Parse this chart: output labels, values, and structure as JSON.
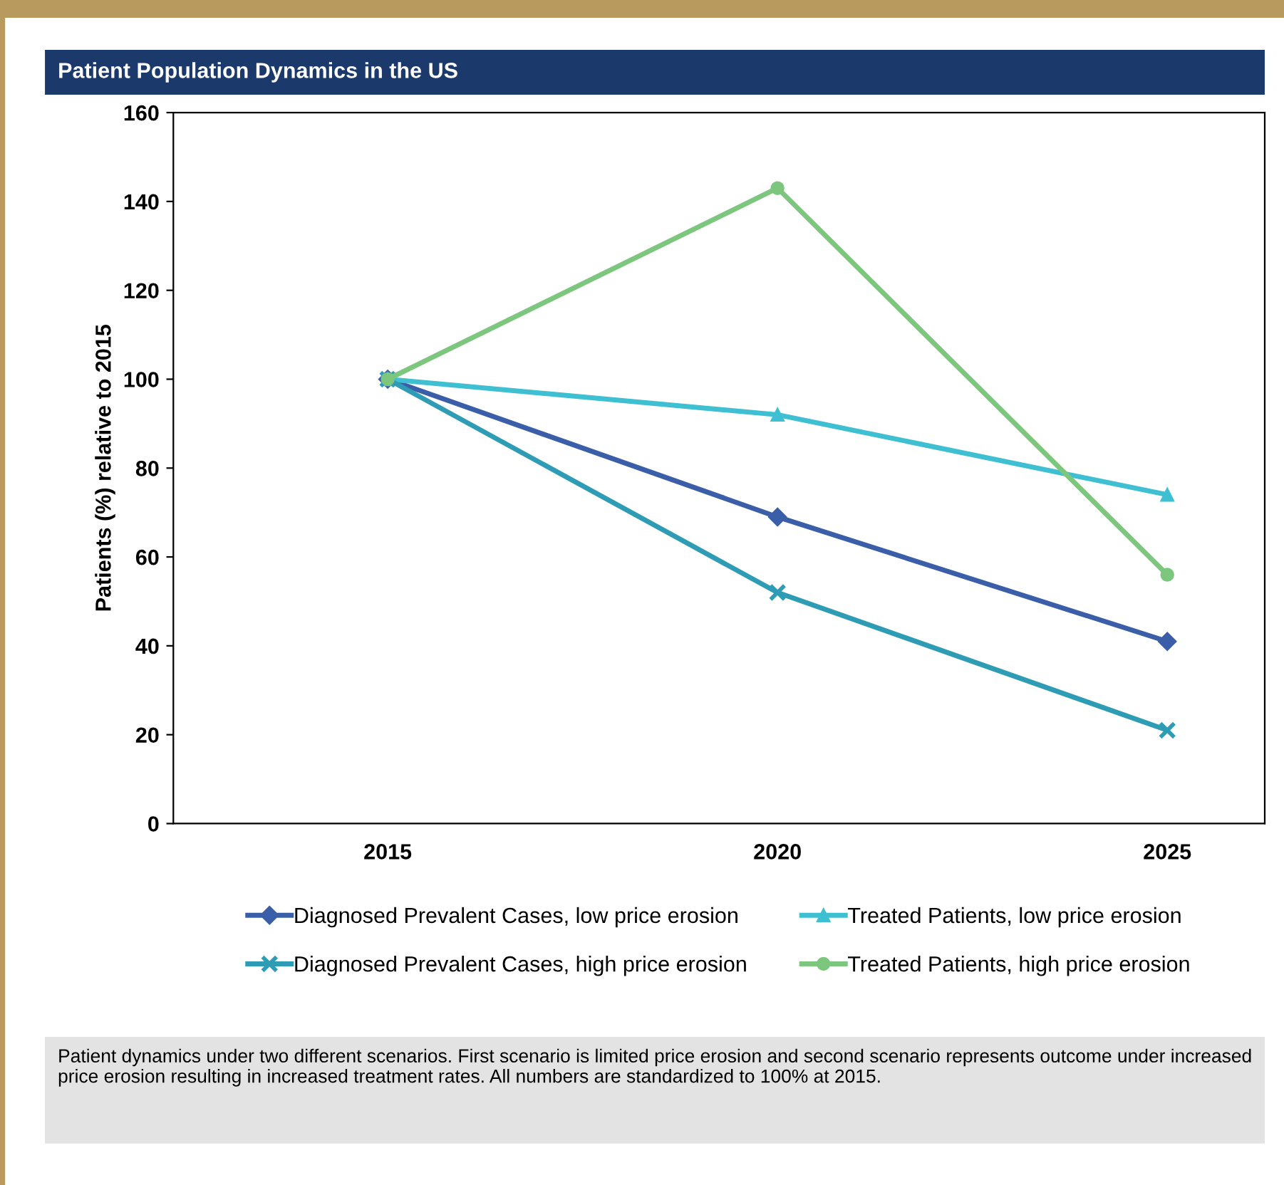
{
  "chart_data": {
    "type": "line",
    "title": "Patient Population Dynamics in the US",
    "ylabel": "Patients (%) relative to 2015",
    "categories": [
      "2015",
      "2020",
      "2025"
    ],
    "series": [
      {
        "name": "Diagnosed Prevalent Cases, low price erosion",
        "color": "#3b5ea8",
        "marker": "diamond",
        "values": [
          100,
          69,
          41
        ]
      },
      {
        "name": "Treated Patients, low price erosion",
        "color": "#3fbfd2",
        "marker": "triangle",
        "values": [
          100,
          92,
          74
        ]
      },
      {
        "name": "Diagnosed Prevalent Cases, high price erosion",
        "color": "#2f9cb6",
        "marker": "cross",
        "values": [
          100,
          52,
          21
        ]
      },
      {
        "name": "Treated Patients, high price erosion",
        "color": "#7cc67e",
        "marker": "circle",
        "values": [
          100,
          143,
          56
        ]
      }
    ],
    "ylim": [
      0,
      160
    ],
    "yticks": [
      0,
      20,
      40,
      60,
      80,
      100,
      120,
      140,
      160
    ],
    "grid": false,
    "legend": "bottom",
    "line_style": "solid",
    "annotations": [
      "Patient dynamics under two different scenarios. First scenario is limited price erosion and second scenario represents outcome under increased price erosion resulting in increased treatment rates. All numbers are standardized to 100% at 2015."
    ]
  }
}
